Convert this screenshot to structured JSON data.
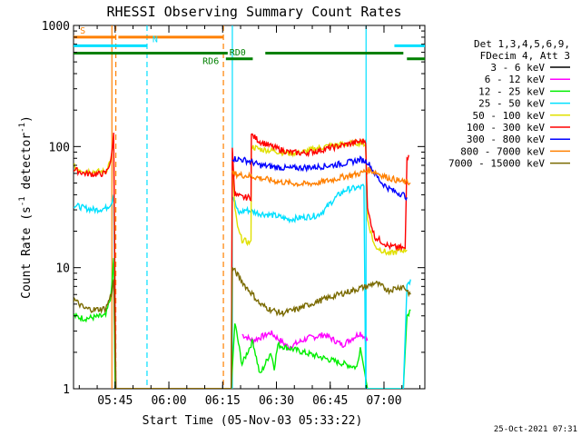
{
  "chart_data": {
    "type": "line",
    "title": "RHESSI Observing Summary Count Rates",
    "xlabel": "Start Time (05-Nov-03 05:33:22)",
    "ylabel_main": "Count Rate (s",
    "ylabel_sup": "-1",
    "ylabel_rest": " detector",
    "ylabel_end": ")",
    "yscale": "log",
    "ylim": [
      1,
      1000
    ],
    "xlim_minutes": [
      0,
      98
    ],
    "x_ticks": [
      {
        "label": "05:45",
        "minute": 11.6
      },
      {
        "label": "06:00",
        "minute": 26.6
      },
      {
        "label": "06:15",
        "minute": 41.6
      },
      {
        "label": "06:30",
        "minute": 56.6
      },
      {
        "label": "06:45",
        "minute": 71.6
      },
      {
        "label": "07:00",
        "minute": 86.6
      }
    ],
    "y_ticks": [
      {
        "label": "1",
        "value": 1
      },
      {
        "label": "10",
        "value": 10
      },
      {
        "label": "100",
        "value": 100
      },
      {
        "label": "1000",
        "value": 1000
      }
    ],
    "legend_header": [
      "Det 1,3,4,5,6,9,",
      "FDecim 4, Att 3"
    ],
    "timestamp": "25-Oct-2021 07:31",
    "series": [
      {
        "name": "3 - 6 keV",
        "color": "#000000",
        "points": []
      },
      {
        "name": "6 - 12 keV",
        "color": "#ff00ff",
        "points": [
          [
            47,
            2.8
          ],
          [
            50,
            2.5
          ],
          [
            55,
            2.9
          ],
          [
            60,
            2.2
          ],
          [
            65,
            2.6
          ],
          [
            70,
            2.8
          ],
          [
            75,
            2.3
          ],
          [
            80,
            2.9
          ],
          [
            82,
            2.5
          ]
        ]
      },
      {
        "name": "12 - 25 keV",
        "color": "#00ee00",
        "points": [
          [
            0,
            4
          ],
          [
            3,
            3.8
          ],
          [
            6,
            3.9
          ],
          [
            9,
            4
          ],
          [
            10.5,
            6
          ],
          [
            11.2,
            12
          ],
          [
            11.6,
            1
          ],
          [
            44,
            1
          ],
          [
            45,
            3.5
          ],
          [
            47,
            1.6
          ],
          [
            50,
            2.5
          ],
          [
            52,
            1.3
          ],
          [
            55,
            2
          ],
          [
            56,
            1.5
          ],
          [
            57,
            2.3
          ],
          [
            79,
            1.5
          ],
          [
            80,
            2.2
          ],
          [
            82,
            1
          ],
          [
            92,
            1
          ],
          [
            93,
            4
          ],
          [
            94,
            4.5
          ]
        ]
      },
      {
        "name": "25 - 50 keV",
        "color": "#00e0ff",
        "points": [
          [
            0,
            33
          ],
          [
            3,
            31
          ],
          [
            6,
            30
          ],
          [
            9,
            31
          ],
          [
            10.5,
            34
          ],
          [
            11.2,
            40
          ],
          [
            11.8,
            1
          ],
          [
            44,
            1
          ],
          [
            44.3,
            40
          ],
          [
            46,
            28
          ],
          [
            48,
            30
          ],
          [
            52,
            28
          ],
          [
            56,
            27
          ],
          [
            60,
            25
          ],
          [
            64,
            26
          ],
          [
            68,
            27
          ],
          [
            70,
            30
          ],
          [
            72,
            35
          ],
          [
            74,
            40
          ],
          [
            76,
            44
          ],
          [
            78,
            45
          ],
          [
            80,
            46
          ],
          [
            81,
            47
          ],
          [
            81.5,
            1
          ],
          [
            92,
            1
          ],
          [
            93,
            7
          ],
          [
            94,
            8
          ]
        ]
      },
      {
        "name": "50 - 100 keV",
        "color": "#e0e000",
        "points": [
          [
            0,
            68
          ],
          [
            3,
            63
          ],
          [
            6,
            62
          ],
          [
            9,
            62
          ],
          [
            10.5,
            80
          ],
          [
            11.2,
            110
          ],
          [
            11.8,
            1
          ],
          [
            44,
            1
          ],
          [
            44.3,
            75
          ],
          [
            45,
            30
          ],
          [
            46,
            20
          ],
          [
            47,
            17
          ],
          [
            48,
            16.5
          ],
          [
            49.5,
            16
          ],
          [
            49.6,
            100
          ],
          [
            52,
            95
          ],
          [
            56,
            92
          ],
          [
            60,
            88
          ],
          [
            64,
            90
          ],
          [
            68,
            97
          ],
          [
            72,
            102
          ],
          [
            76,
            105
          ],
          [
            80,
            108
          ],
          [
            81.5,
            105
          ],
          [
            82,
            25
          ],
          [
            84,
            15
          ],
          [
            88,
            13
          ],
          [
            92,
            14
          ],
          [
            93,
            14
          ]
        ]
      },
      {
        "name": "100 - 300 keV",
        "color": "#ff0000",
        "points": [
          [
            0,
            65
          ],
          [
            3,
            60
          ],
          [
            6,
            59
          ],
          [
            9,
            60
          ],
          [
            10.5,
            78
          ],
          [
            11.2,
            130
          ],
          [
            11.8,
            1
          ],
          [
            44,
            1
          ],
          [
            44.3,
            95
          ],
          [
            45,
            40
          ],
          [
            47,
            38
          ],
          [
            49.5,
            38
          ],
          [
            49.6,
            125
          ],
          [
            52,
            110
          ],
          [
            56,
            98
          ],
          [
            60,
            90
          ],
          [
            64,
            88
          ],
          [
            68,
            92
          ],
          [
            72,
            98
          ],
          [
            76,
            104
          ],
          [
            80,
            110
          ],
          [
            81.5,
            112
          ],
          [
            82,
            30
          ],
          [
            84,
            18
          ],
          [
            88,
            15
          ],
          [
            92,
            14.5
          ],
          [
            92.5,
            14
          ],
          [
            93,
            80
          ],
          [
            93.5,
            85
          ]
        ]
      },
      {
        "name": "300 - 800 keV",
        "color": "#0000ff",
        "points": [
          [
            44.3,
            80
          ],
          [
            47,
            78
          ],
          [
            49.5,
            75
          ],
          [
            52,
            70
          ],
          [
            56,
            68
          ],
          [
            60,
            66
          ],
          [
            64,
            67
          ],
          [
            68,
            68
          ],
          [
            72,
            70
          ],
          [
            76,
            73
          ],
          [
            80,
            78
          ],
          [
            82,
            75
          ],
          [
            84,
            60
          ],
          [
            86,
            50
          ],
          [
            88,
            45
          ],
          [
            90,
            42
          ],
          [
            92,
            40
          ],
          [
            93,
            38
          ]
        ]
      },
      {
        "name": "800 - 7000 keV",
        "color": "#ff8000",
        "points": [
          [
            44.3,
            60
          ],
          [
            47,
            58
          ],
          [
            49.5,
            57
          ],
          [
            52,
            55
          ],
          [
            56,
            52
          ],
          [
            60,
            50
          ],
          [
            64,
            49
          ],
          [
            68,
            50
          ],
          [
            72,
            53
          ],
          [
            76,
            57
          ],
          [
            80,
            60
          ],
          [
            82,
            64
          ],
          [
            84,
            62
          ],
          [
            86,
            58
          ],
          [
            88,
            55
          ],
          [
            90,
            53
          ],
          [
            92,
            51
          ],
          [
            94,
            50
          ]
        ]
      },
      {
        "name": "7000 - 15000 keV",
        "color": "#7a6a00",
        "points": [
          [
            0,
            5.5
          ],
          [
            3,
            4.6
          ],
          [
            6,
            4.5
          ],
          [
            9,
            4.6
          ],
          [
            10.5,
            6
          ],
          [
            11.2,
            8
          ],
          [
            11.8,
            1
          ],
          [
            44,
            1
          ],
          [
            44.3,
            10
          ],
          [
            46,
            8.5
          ],
          [
            48,
            7
          ],
          [
            50,
            6
          ],
          [
            52,
            5
          ],
          [
            55,
            4.5
          ],
          [
            58,
            4.2
          ],
          [
            62,
            4.5
          ],
          [
            66,
            5
          ],
          [
            70,
            5.5
          ],
          [
            74,
            6
          ],
          [
            78,
            6.5
          ],
          [
            80,
            6.8
          ],
          [
            82,
            7
          ],
          [
            84,
            7.5
          ],
          [
            86,
            7
          ],
          [
            88,
            6.5
          ],
          [
            90,
            6.8
          ],
          [
            92,
            7
          ],
          [
            94,
            6
          ]
        ]
      }
    ],
    "bars": [
      {
        "label": "S",
        "color": "#ff8000",
        "start": 0,
        "end": 11.8,
        "level": 800,
        "label_minute": 1.8
      },
      {
        "label": "",
        "color": "#ff8000",
        "start": 12.5,
        "end": 41.8,
        "level": 800,
        "label_minute": null
      },
      {
        "label": "N",
        "color": "#00e0ff",
        "start": 0,
        "end": 20.5,
        "level": 680,
        "label_minute": 22
      },
      {
        "label": "",
        "color": "#00e0ff",
        "start": 89.5,
        "end": 115,
        "level": 680,
        "label_minute": null
      },
      {
        "label": "RD0",
        "color": "#008000",
        "start": 42.5,
        "end": 50,
        "level": 530,
        "label_minute": 43.5
      },
      {
        "label": "",
        "color": "#008000",
        "start": 53.5,
        "end": 92,
        "level": 590,
        "label_minute": null
      },
      {
        "label": "RD6",
        "color": "#008000",
        "start": 0,
        "end": 43,
        "level": 590,
        "label_minute": 36
      },
      {
        "label": "",
        "color": "#008000",
        "start": 93,
        "end": 102,
        "level": 530,
        "label_minute": null
      }
    ],
    "vlines": [
      {
        "minute": 10.7,
        "color": "#ff8000",
        "dash": false
      },
      {
        "minute": 11.8,
        "color": "#ff8000",
        "dash": true
      },
      {
        "minute": 41.8,
        "color": "#ff8000",
        "dash": true
      },
      {
        "minute": 20.5,
        "color": "#00e0ff",
        "dash": true
      },
      {
        "minute": 44.3,
        "color": "#00e0ff",
        "dash": false
      },
      {
        "minute": 81.6,
        "color": "#00e0ff",
        "dash": false
      },
      {
        "minute": 100.5,
        "color": "#00e0ff",
        "dash": true
      }
    ]
  }
}
